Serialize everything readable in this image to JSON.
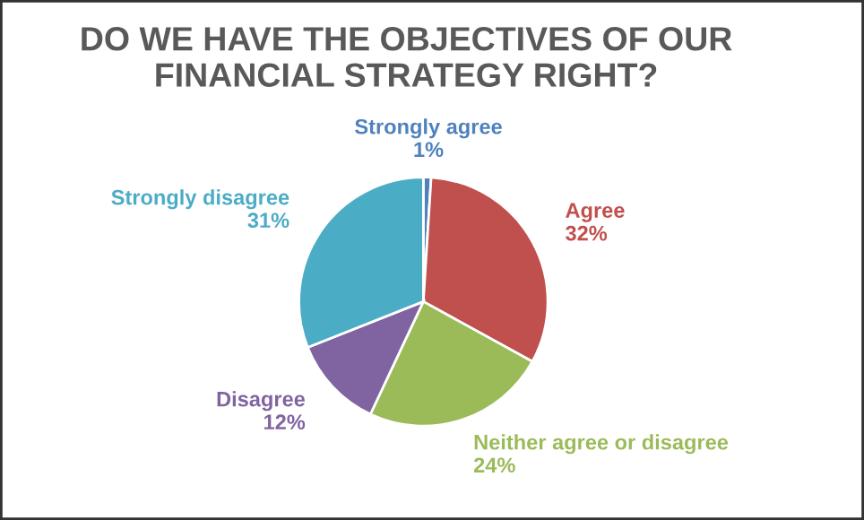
{
  "chart_data": {
    "type": "pie",
    "title": "DO WE HAVE THE OBJECTIVES OF OUR\nFINANCIAL STRATEGY RIGHT?",
    "categories": [
      "Strongly agree",
      "Agree",
      "Neither agree or disagree",
      "Disagree",
      "Strongly disagree"
    ],
    "values": [
      1,
      32,
      24,
      12,
      31
    ],
    "colors": [
      "#4f81bd",
      "#c0504d",
      "#9bbb59",
      "#8064a2",
      "#4bacc6"
    ],
    "value_labels": [
      "1%",
      "32%",
      "24%",
      "12%",
      "31%"
    ]
  }
}
